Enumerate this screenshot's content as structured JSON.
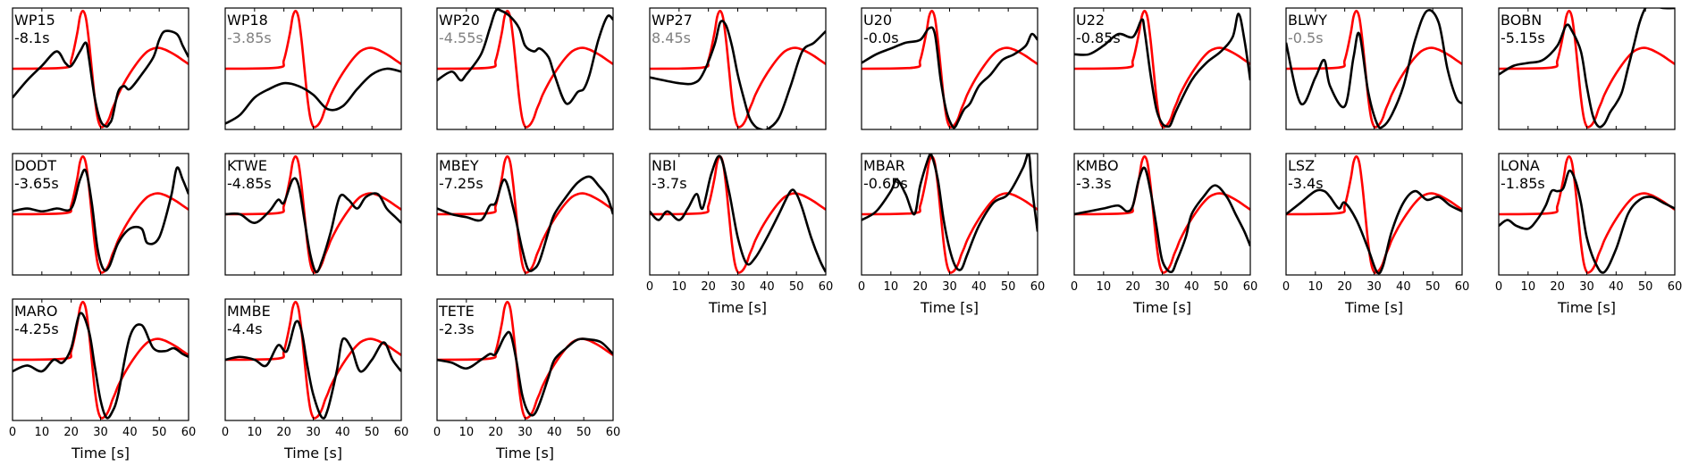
{
  "chart_data": {
    "type": "line",
    "layout": "small-multiples",
    "x_axis_label": "Time [s]",
    "x_ticks": [
      0,
      10,
      20,
      30,
      40,
      50,
      60
    ],
    "xlim": [
      0,
      60
    ],
    "ylim": [
      -1.05,
      1.05
    ],
    "series_colors": {
      "synthetic": "#ff0000",
      "observed": "#000000"
    },
    "reference_wavelet": {
      "x": [
        0,
        18,
        20,
        22,
        23,
        24,
        25,
        26,
        27,
        28,
        29,
        30,
        31,
        32,
        33,
        34,
        35,
        36,
        38,
        40,
        42,
        44,
        46,
        48,
        50,
        52,
        54,
        56,
        58,
        60
      ],
      "y": [
        0,
        0.02,
        0.15,
        0.6,
        0.9,
        1.0,
        0.88,
        0.5,
        0.0,
        -0.5,
        -0.85,
        -1.0,
        -1.0,
        -0.95,
        -0.85,
        -0.7,
        -0.58,
        -0.45,
        -0.25,
        -0.08,
        0.07,
        0.2,
        0.3,
        0.35,
        0.36,
        0.33,
        0.28,
        0.22,
        0.15,
        0.08
      ]
    },
    "panels": [
      {
        "station": "WP15",
        "shift": "-8.1s",
        "shift_muted": false,
        "x_ticks_shown": false,
        "observed": {
          "x": [
            0,
            5,
            10,
            15,
            18,
            20,
            23,
            25,
            26,
            28,
            30,
            32,
            33,
            34,
            36,
            38,
            40,
            44,
            48,
            50,
            52,
            56,
            58,
            60
          ],
          "y": [
            -0.5,
            -0.2,
            0.05,
            0.3,
            0.1,
            0.05,
            0.3,
            0.45,
            0.2,
            -0.5,
            -0.9,
            -1.0,
            -0.95,
            -0.85,
            -0.4,
            -0.3,
            -0.35,
            -0.1,
            0.2,
            0.5,
            0.65,
            0.6,
            0.4,
            0.2
          ]
        }
      },
      {
        "station": "WP18",
        "shift": "-3.85s",
        "shift_muted": true,
        "x_ticks_shown": false,
        "observed": {
          "x": [
            0,
            5,
            10,
            15,
            20,
            25,
            30,
            35,
            40,
            45,
            50,
            55,
            60
          ],
          "y": [
            -0.95,
            -0.8,
            -0.5,
            -0.35,
            -0.25,
            -0.3,
            -0.45,
            -0.7,
            -0.65,
            -0.35,
            -0.1,
            0.0,
            -0.05
          ]
        }
      },
      {
        "station": "WP20",
        "shift": "-4.55s",
        "shift_muted": true,
        "x_ticks_shown": false,
        "observed": {
          "x": [
            0,
            5,
            8,
            10,
            15,
            18,
            20,
            22,
            25,
            28,
            30,
            33,
            35,
            38,
            40,
            44,
            48,
            50,
            52,
            55,
            58,
            60
          ],
          "y": [
            -0.2,
            -0.05,
            -0.2,
            -0.1,
            0.25,
            0.7,
            1.0,
            1.0,
            0.9,
            0.7,
            0.4,
            0.3,
            0.35,
            0.2,
            -0.1,
            -0.6,
            -0.4,
            -0.35,
            -0.1,
            0.5,
            0.9,
            0.85
          ]
        }
      },
      {
        "station": "WP27",
        "shift": "8.45s",
        "shift_muted": true,
        "x_ticks_shown": false,
        "observed": {
          "x": [
            0,
            10,
            15,
            18,
            22,
            24,
            26,
            28,
            30,
            32,
            34,
            36,
            38,
            40,
            44,
            48,
            52,
            56,
            60
          ],
          "y": [
            -0.15,
            -0.25,
            -0.25,
            -0.1,
            0.4,
            0.8,
            0.75,
            0.4,
            -0.1,
            -0.5,
            -0.85,
            -1.0,
            -1.05,
            -1.05,
            -0.85,
            -0.3,
            0.3,
            0.45,
            0.65
          ]
        }
      },
      {
        "station": "U20",
        "shift": "-0.0s",
        "shift_muted": false,
        "x_ticks_shown": false,
        "observed": {
          "x": [
            0,
            5,
            10,
            15,
            20,
            23,
            25,
            27,
            29,
            31,
            32,
            33,
            35,
            37,
            40,
            44,
            48,
            52,
            56,
            58,
            60
          ],
          "y": [
            0.1,
            0.25,
            0.35,
            0.45,
            0.5,
            0.7,
            0.6,
            -0.2,
            -0.75,
            -1.0,
            -1.0,
            -0.9,
            -0.7,
            -0.6,
            -0.3,
            -0.1,
            0.15,
            0.25,
            0.4,
            0.6,
            0.5
          ]
        }
      },
      {
        "station": "U22",
        "shift": "-0.85s",
        "shift_muted": false,
        "x_ticks_shown": false,
        "observed": {
          "x": [
            0,
            5,
            10,
            15,
            20,
            23,
            24,
            26,
            28,
            30,
            32,
            33,
            35,
            40,
            45,
            50,
            54,
            56,
            58,
            60
          ],
          "y": [
            0.25,
            0.25,
            0.4,
            0.6,
            0.55,
            0.85,
            0.65,
            -0.1,
            -0.7,
            -0.95,
            -1.0,
            -0.95,
            -0.7,
            -0.2,
            0.1,
            0.3,
            0.55,
            0.95,
            0.5,
            -0.2
          ]
        }
      },
      {
        "station": "BLWY",
        "shift": "-0.5s",
        "shift_muted": true,
        "x_ticks_shown": false,
        "observed": {
          "x": [
            0,
            5,
            10,
            13,
            15,
            20,
            23,
            25,
            28,
            31,
            33,
            36,
            40,
            44,
            48,
            52,
            55,
            58,
            60
          ],
          "y": [
            0.45,
            -0.6,
            -0.15,
            0.15,
            -0.3,
            -0.65,
            0.2,
            0.6,
            -0.4,
            -0.95,
            -1.0,
            -0.8,
            -0.3,
            0.5,
            1.0,
            0.8,
            0.0,
            -0.5,
            -0.6
          ]
        }
      },
      {
        "station": "BOBN",
        "shift": "-5.15s",
        "shift_muted": false,
        "x_ticks_shown": false,
        "observed": {
          "x": [
            0,
            5,
            10,
            15,
            20,
            23,
            25,
            28,
            30,
            32,
            34,
            36,
            38,
            40,
            42,
            44,
            46,
            48,
            50,
            52,
            56,
            60
          ],
          "y": [
            -0.1,
            0.05,
            0.1,
            0.15,
            0.4,
            0.75,
            0.65,
            0.3,
            -0.3,
            -0.8,
            -1.0,
            -0.95,
            -0.75,
            -0.6,
            -0.4,
            0.0,
            0.4,
            0.8,
            1.05,
            1.1,
            1.05,
            1.05
          ]
        }
      },
      {
        "station": "DODT",
        "shift": "-3.65s",
        "shift_muted": false,
        "x_ticks_shown": false,
        "observed": {
          "x": [
            0,
            5,
            10,
            15,
            20,
            23,
            25,
            27,
            29,
            31,
            33,
            36,
            40,
            44,
            46,
            50,
            54,
            56,
            58,
            60
          ],
          "y": [
            0.05,
            0.1,
            0.05,
            0.1,
            0.1,
            0.6,
            0.75,
            0.2,
            -0.6,
            -0.95,
            -0.9,
            -0.5,
            -0.25,
            -0.25,
            -0.5,
            -0.4,
            0.3,
            0.8,
            0.6,
            0.35
          ]
        }
      },
      {
        "station": "KTWE",
        "shift": "-4.85s",
        "shift_muted": false,
        "x_ticks_shown": false,
        "observed": {
          "x": [
            0,
            5,
            10,
            15,
            18,
            20,
            23,
            25,
            27,
            29,
            31,
            33,
            36,
            39,
            42,
            45,
            48,
            52,
            55,
            58,
            60
          ],
          "y": [
            0.0,
            0.0,
            -0.15,
            0.05,
            0.25,
            0.2,
            0.6,
            0.5,
            -0.1,
            -0.7,
            -1.0,
            -0.8,
            -0.3,
            0.3,
            0.25,
            0.1,
            0.3,
            0.35,
            0.1,
            -0.05,
            -0.15
          ]
        }
      },
      {
        "station": "MBEY",
        "shift": "-7.25s",
        "shift_muted": false,
        "x_ticks_shown": false,
        "observed": {
          "x": [
            0,
            5,
            10,
            15,
            18,
            20,
            23,
            26,
            29,
            31,
            33,
            35,
            38,
            40,
            44,
            48,
            52,
            55,
            58,
            60
          ],
          "y": [
            0.1,
            0.0,
            -0.05,
            -0.1,
            0.15,
            0.2,
            0.6,
            0.1,
            -0.6,
            -0.95,
            -0.95,
            -0.8,
            -0.3,
            0.0,
            0.3,
            0.55,
            0.65,
            0.5,
            0.3,
            0.0
          ]
        }
      },
      {
        "station": "NBI",
        "shift": "-3.7s",
        "shift_muted": false,
        "x_ticks_shown": true,
        "observed": {
          "x": [
            0,
            3,
            6,
            10,
            13,
            16,
            18,
            21,
            24,
            27,
            30,
            33,
            36,
            40,
            44,
            48,
            50,
            52,
            55,
            58,
            60
          ],
          "y": [
            0.05,
            -0.1,
            0.05,
            -0.1,
            0.1,
            0.35,
            0.1,
            0.7,
            1.0,
            0.4,
            -0.4,
            -0.85,
            -0.75,
            -0.4,
            0.0,
            0.4,
            0.35,
            0.1,
            -0.4,
            -0.8,
            -1.0
          ]
        }
      },
      {
        "station": "MBAR",
        "shift": "-0.65s",
        "shift_muted": false,
        "x_ticks_shown": true,
        "observed": {
          "x": [
            0,
            5,
            10,
            12,
            15,
            18,
            20,
            23,
            24,
            26,
            28,
            30,
            32,
            34,
            36,
            40,
            45,
            50,
            55,
            57,
            58,
            60
          ],
          "y": [
            -0.1,
            0.05,
            0.4,
            0.6,
            0.35,
            0.0,
            0.5,
            1.0,
            1.0,
            0.6,
            -0.1,
            -0.6,
            -0.9,
            -0.95,
            -0.7,
            -0.2,
            0.2,
            0.35,
            0.8,
            1.05,
            0.5,
            -0.3
          ]
        }
      },
      {
        "station": "KMBO",
        "shift": "-3.3s",
        "shift_muted": false,
        "x_ticks_shown": true,
        "observed": {
          "x": [
            0,
            5,
            10,
            15,
            18,
            20,
            22,
            24,
            26,
            28,
            30,
            33,
            35,
            38,
            40,
            44,
            48,
            52,
            55,
            58,
            60
          ],
          "y": [
            0.0,
            0.05,
            0.1,
            0.15,
            0.05,
            0.15,
            0.6,
            0.8,
            0.4,
            -0.2,
            -0.8,
            -1.0,
            -0.8,
            -0.4,
            0.0,
            0.3,
            0.5,
            0.3,
            0.0,
            -0.3,
            -0.55
          ]
        }
      },
      {
        "station": "LSZ",
        "shift": "-3.4s",
        "shift_muted": false,
        "x_ticks_shown": true,
        "observed": {
          "x": [
            0,
            5,
            10,
            13,
            15,
            18,
            20,
            24,
            28,
            31,
            33,
            36,
            40,
            44,
            48,
            52,
            56,
            60
          ],
          "y": [
            0.0,
            0.2,
            0.4,
            0.4,
            0.3,
            0.1,
            0.2,
            -0.1,
            -0.6,
            -1.0,
            -0.9,
            -0.3,
            0.2,
            0.4,
            0.25,
            0.3,
            0.15,
            0.05
          ]
        }
      },
      {
        "station": "LONA",
        "shift": "-1.85s",
        "shift_muted": false,
        "x_ticks_shown": true,
        "observed": {
          "x": [
            0,
            3,
            6,
            10,
            13,
            16,
            18,
            20,
            22,
            24,
            26,
            28,
            30,
            33,
            36,
            40,
            44,
            48,
            52,
            56,
            60
          ],
          "y": [
            -0.2,
            -0.1,
            -0.2,
            -0.25,
            -0.1,
            0.15,
            0.4,
            0.4,
            0.45,
            0.75,
            0.6,
            0.2,
            -0.4,
            -0.85,
            -1.0,
            -0.6,
            0.0,
            0.25,
            0.3,
            0.2,
            0.1
          ]
        }
      },
      {
        "station": "MARO",
        "shift": "-4.25s",
        "shift_muted": false,
        "x_ticks_shown": true,
        "observed": {
          "x": [
            0,
            5,
            10,
            14,
            17,
            20,
            23,
            26,
            28,
            30,
            32,
            34,
            36,
            40,
            44,
            48,
            52,
            55,
            58,
            60
          ],
          "y": [
            -0.2,
            -0.1,
            -0.2,
            0.0,
            -0.05,
            0.2,
            0.8,
            0.5,
            -0.1,
            -0.7,
            -1.0,
            -0.9,
            -0.6,
            0.4,
            0.6,
            0.2,
            0.15,
            0.2,
            0.1,
            0.05
          ]
        }
      },
      {
        "station": "MMBE",
        "shift": "-4.4s",
        "shift_muted": false,
        "x_ticks_shown": true,
        "observed": {
          "x": [
            0,
            5,
            10,
            14,
            18,
            21,
            24,
            26,
            28,
            30,
            33,
            35,
            38,
            40,
            43,
            46,
            50,
            54,
            57,
            60
          ],
          "y": [
            0.0,
            0.05,
            0.0,
            -0.1,
            0.25,
            0.15,
            0.65,
            0.5,
            -0.1,
            -0.6,
            -1.0,
            -0.85,
            -0.2,
            0.35,
            0.2,
            -0.2,
            0.0,
            0.3,
            0.0,
            -0.2
          ]
        }
      },
      {
        "station": "TETE",
        "shift": "-2.3s",
        "shift_muted": false,
        "x_ticks_shown": true,
        "observed": {
          "x": [
            0,
            5,
            10,
            15,
            18,
            20,
            23,
            25,
            27,
            29,
            31,
            33,
            35,
            38,
            40,
            44,
            48,
            52,
            56,
            60
          ],
          "y": [
            0.0,
            -0.05,
            -0.15,
            0.0,
            0.1,
            0.1,
            0.4,
            0.45,
            0.0,
            -0.6,
            -0.9,
            -0.95,
            -0.75,
            -0.3,
            0.0,
            0.2,
            0.35,
            0.35,
            0.3,
            0.1
          ]
        }
      }
    ]
  }
}
